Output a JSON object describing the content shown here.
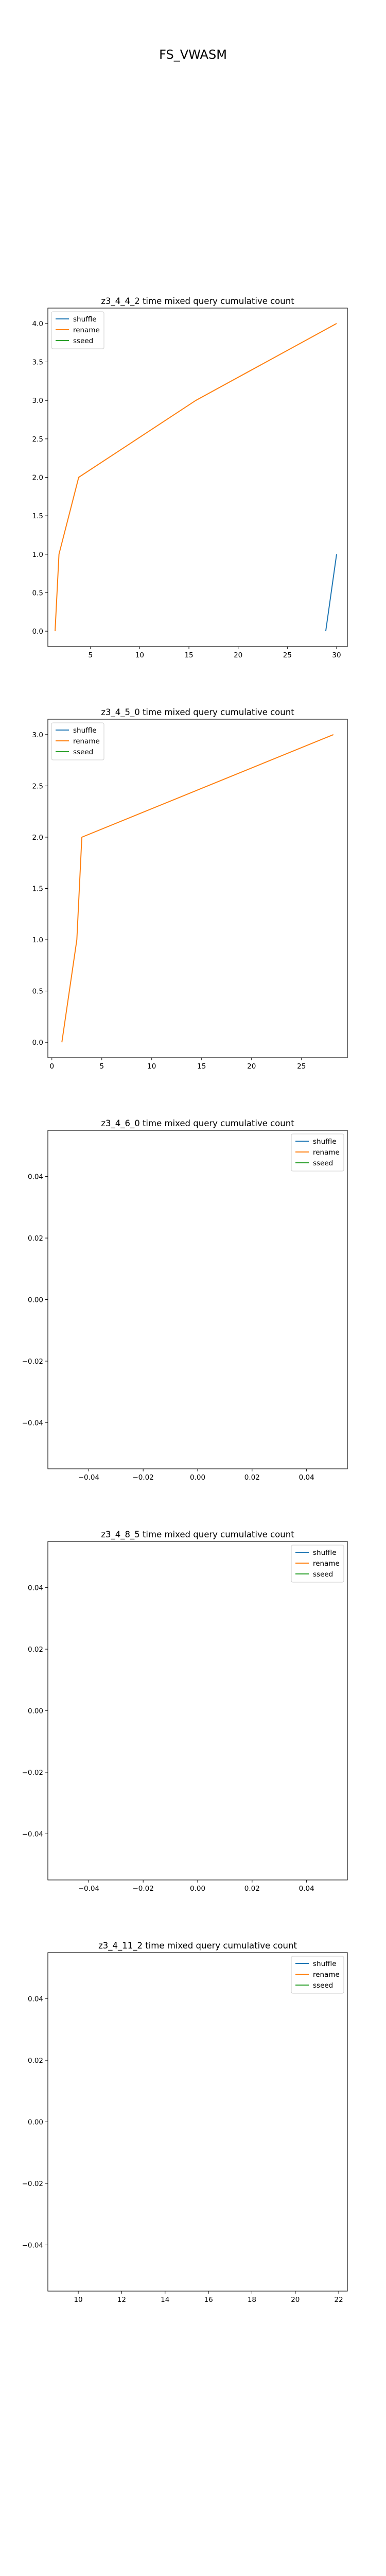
{
  "figure": {
    "title": "FS_VWASM"
  },
  "chart_data": [
    {
      "type": "line",
      "title": "z3_4_4_2 time mixed query cumulative count",
      "xlabel": "",
      "ylabel": "",
      "xlim": [
        0.67,
        31.1
      ],
      "ylim": [
        -0.2,
        4.2
      ],
      "xticks": [
        5,
        10,
        15,
        20,
        25,
        30
      ],
      "yticks": [
        0.0,
        0.5,
        1.0,
        1.5,
        2.0,
        2.5,
        3.0,
        3.5,
        4.0
      ],
      "xtick_decimals": 0,
      "ytick_decimals": 1,
      "legend": "upper left",
      "series": [
        {
          "name": "shuffle",
          "color": "#1f77b4",
          "x": [
            28.9,
            30.0
          ],
          "y": [
            0,
            1
          ]
        },
        {
          "name": "rename",
          "color": "#ff7f0e",
          "x": [
            1.4,
            1.8,
            3.8,
            15.7,
            30.0
          ],
          "y": [
            0,
            1,
            2,
            3,
            4
          ]
        },
        {
          "name": "sseed",
          "color": "#2ca02c",
          "x": [],
          "y": []
        }
      ]
    },
    {
      "type": "line",
      "title": "z3_4_5_0 time mixed query cumulative count",
      "xlabel": "",
      "ylabel": "",
      "xlim": [
        -0.4,
        29.6
      ],
      "ylim": [
        -0.15,
        3.15
      ],
      "xticks": [
        0,
        5,
        10,
        15,
        20,
        25
      ],
      "yticks": [
        0.0,
        0.5,
        1.0,
        1.5,
        2.0,
        2.5,
        3.0
      ],
      "xtick_decimals": 0,
      "ytick_decimals": 1,
      "legend": "upper left",
      "series": [
        {
          "name": "shuffle",
          "color": "#1f77b4",
          "x": [],
          "y": []
        },
        {
          "name": "rename",
          "color": "#ff7f0e",
          "x": [
            1.0,
            2.5,
            3.0,
            28.2
          ],
          "y": [
            0,
            1,
            2,
            3
          ]
        },
        {
          "name": "sseed",
          "color": "#2ca02c",
          "x": [],
          "y": []
        }
      ]
    },
    {
      "type": "line",
      "title": "z3_4_6_0 time mixed query cumulative count",
      "xlabel": "",
      "ylabel": "",
      "xlim": [
        -0.055,
        0.055
      ],
      "ylim": [
        -0.055,
        0.055
      ],
      "xticks": [
        -0.04,
        -0.02,
        0.0,
        0.02,
        0.04
      ],
      "yticks": [
        -0.04,
        -0.02,
        0.0,
        0.02,
        0.04
      ],
      "xtick_decimals": 2,
      "ytick_decimals": 2,
      "legend": "upper right",
      "series": [
        {
          "name": "shuffle",
          "color": "#1f77b4",
          "x": [],
          "y": []
        },
        {
          "name": "rename",
          "color": "#ff7f0e",
          "x": [],
          "y": []
        },
        {
          "name": "sseed",
          "color": "#2ca02c",
          "x": [],
          "y": []
        }
      ]
    },
    {
      "type": "line",
      "title": "z3_4_8_5 time mixed query cumulative count",
      "xlabel": "",
      "ylabel": "",
      "xlim": [
        -0.055,
        0.055
      ],
      "ylim": [
        -0.055,
        0.055
      ],
      "xticks": [
        -0.04,
        -0.02,
        0.0,
        0.02,
        0.04
      ],
      "yticks": [
        -0.04,
        -0.02,
        0.0,
        0.02,
        0.04
      ],
      "xtick_decimals": 2,
      "ytick_decimals": 2,
      "legend": "upper right",
      "series": [
        {
          "name": "shuffle",
          "color": "#1f77b4",
          "x": [],
          "y": []
        },
        {
          "name": "rename",
          "color": "#ff7f0e",
          "x": [],
          "y": []
        },
        {
          "name": "sseed",
          "color": "#2ca02c",
          "x": [],
          "y": []
        }
      ]
    },
    {
      "type": "line",
      "title": "z3_4_11_2 time mixed query cumulative count",
      "xlabel": "",
      "ylabel": "",
      "xlim": [
        8.6,
        22.4
      ],
      "ylim": [
        -0.055,
        0.055
      ],
      "xticks": [
        10,
        12,
        14,
        16,
        18,
        20,
        22
      ],
      "yticks": [
        -0.04,
        -0.02,
        0.0,
        0.02,
        0.04
      ],
      "xtick_decimals": 0,
      "ytick_decimals": 2,
      "legend": "upper right",
      "series": [
        {
          "name": "shuffle",
          "color": "#1f77b4",
          "x": [],
          "y": []
        },
        {
          "name": "rename",
          "color": "#ff7f0e",
          "x": [],
          "y": []
        },
        {
          "name": "sseed",
          "color": "#2ca02c",
          "x": [],
          "y": []
        }
      ]
    }
  ]
}
